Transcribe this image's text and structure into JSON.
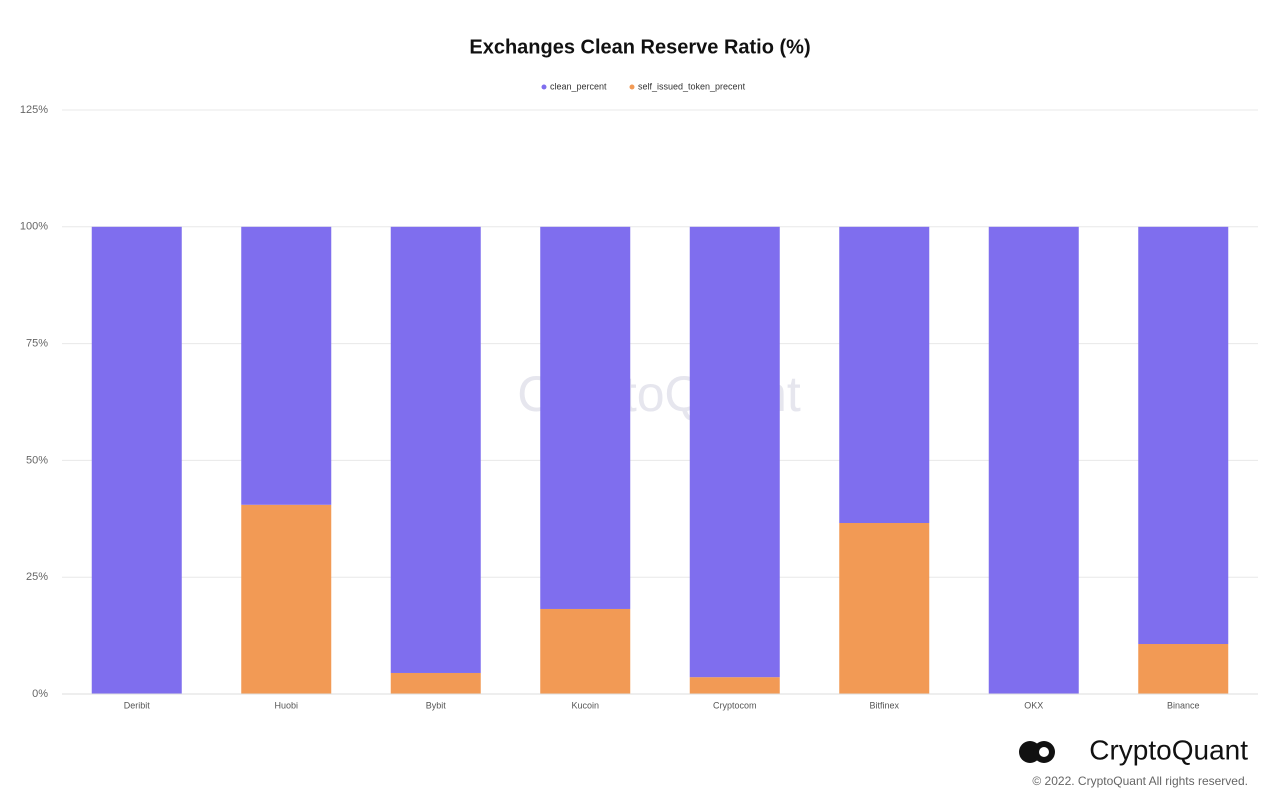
{
  "chart_data": {
    "type": "stacked_bar",
    "title": "Exchanges Clean Reserve Ratio (%)",
    "categories": [
      "Deribit",
      "Huobi",
      "Bybit",
      "Kucoin",
      "Cryptocom",
      "Bitfinex",
      "OKX",
      "Binance"
    ],
    "series": [
      {
        "name": "clean_percent",
        "color": "#7f6eee",
        "values": [
          100,
          59.5,
          95.5,
          81.8,
          96.4,
          63.4,
          100,
          89.3
        ]
      },
      {
        "name": "self_issued_token_precent",
        "color": "#f29a55",
        "values": [
          0,
          40.5,
          4.5,
          18.2,
          3.6,
          36.6,
          0,
          10.7
        ]
      }
    ],
    "ylim": [
      0,
      125
    ],
    "yticks": [
      {
        "value": 0,
        "label": "0%"
      },
      {
        "value": 25,
        "label": "25%"
      },
      {
        "value": 50,
        "label": "50%"
      },
      {
        "value": 75,
        "label": "75%"
      },
      {
        "value": 100,
        "label": "100%"
      },
      {
        "value": 125,
        "label": "125%"
      }
    ],
    "grid": true,
    "legend": "top"
  },
  "watermark": "CryptoQuant",
  "brand": "CryptoQuant",
  "copyright": "© 2022. CryptoQuant All rights reserved."
}
